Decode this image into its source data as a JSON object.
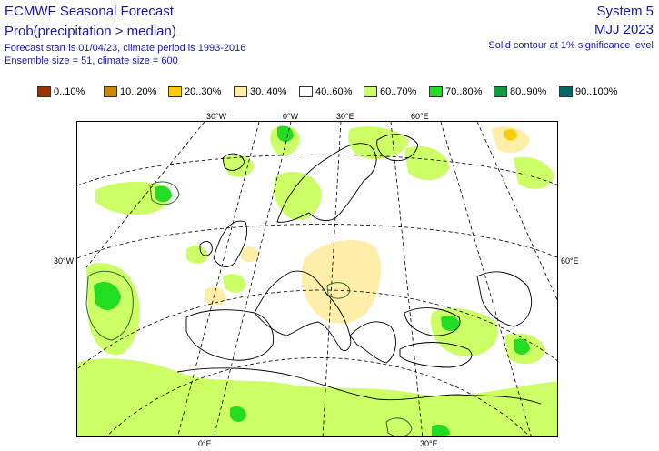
{
  "header": {
    "title": "ECMWF Seasonal Forecast",
    "subtitle": "Prob(precipitation > median)",
    "info_line1": "Forecast start is 01/04/23, climate period is 1993-2016",
    "info_line2": "Ensemble size = 51, climate size = 600",
    "system": "System 5",
    "period": "MJJ 2023",
    "note": "Solid contour at 1% significance level"
  },
  "legend": [
    {
      "label": "0..10%",
      "color": "#993300"
    },
    {
      "label": "10..20%",
      "color": "#cc8800"
    },
    {
      "label": "20..30%",
      "color": "#ffcc00"
    },
    {
      "label": "30..40%",
      "color": "#ffeeaa"
    },
    {
      "label": "40..60%",
      "color": "#ffffff"
    },
    {
      "label": "60..70%",
      "color": "#ccff66"
    },
    {
      "label": "70..80%",
      "color": "#22dd22"
    },
    {
      "label": "80..90%",
      "color": "#119944"
    },
    {
      "label": "90..100%",
      "color": "#006666"
    }
  ],
  "graticule_labels": {
    "top": [
      "30°W",
      "0°W",
      "30°E",
      "60°E"
    ],
    "left": "30°W",
    "right": "60°E",
    "bottom": [
      "0°E",
      "30°E"
    ]
  },
  "colors": {
    "text": "#1a1aa8",
    "green_light": "#ccff66",
    "green_mid": "#22dd22",
    "tan": "#ffeeaa",
    "orange": "#ffcc00"
  }
}
